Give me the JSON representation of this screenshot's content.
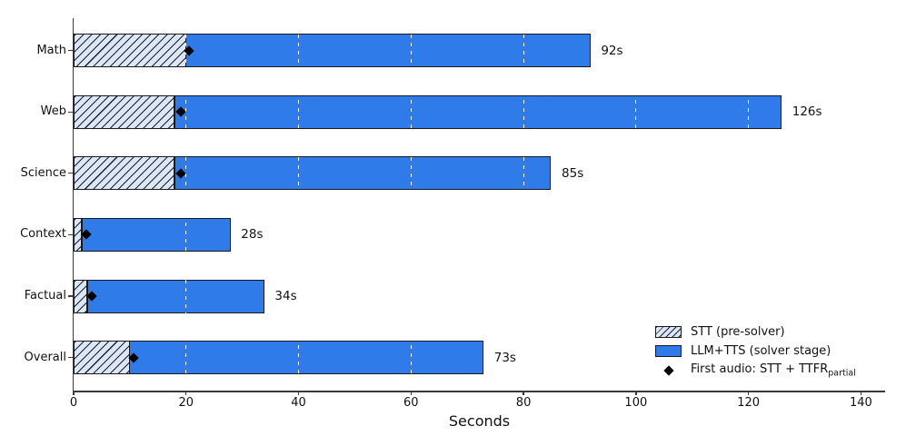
{
  "chart_data": {
    "type": "bar",
    "orientation": "horizontal",
    "title": "",
    "xlabel": "Seconds",
    "xlim": [
      0,
      144.3
    ],
    "xticks": [
      0,
      20,
      40,
      60,
      80,
      100,
      120,
      140
    ],
    "grid": "vertical-dashed",
    "categories": [
      "Math",
      "Web",
      "Science",
      "Context",
      "Factual",
      "Overall"
    ],
    "series": [
      {
        "name": "STT (pre-solver)",
        "style": "hatched",
        "values": [
          20,
          18,
          18,
          1.5,
          2.5,
          10
        ]
      },
      {
        "name": "LLM+TTS (solver stage)",
        "style": "solid",
        "values": [
          72,
          108,
          67,
          26.5,
          31.5,
          63
        ]
      }
    ],
    "totals": [
      92,
      126,
      85,
      28,
      34,
      73
    ],
    "total_labels": [
      "92s",
      "126s",
      "85s",
      "28s",
      "34s",
      "73s"
    ],
    "markers": {
      "name": "First audio: STT + TTFR_partial",
      "shape": "diamond",
      "values": [
        20.5,
        19,
        19,
        2.2,
        3.3,
        10.7
      ]
    },
    "legend": {
      "position": "lower-right",
      "frame": false,
      "items": [
        {
          "label": "STT (pre-solver)",
          "swatch": "hatched-patch"
        },
        {
          "label": "LLM+TTS (solver stage)",
          "swatch": "blue-patch"
        },
        {
          "label": "First audio: STT + TTFR",
          "subscript": "partial",
          "swatch": "black-diamond"
        }
      ]
    },
    "colors": {
      "solver_blue": "#2f7bea",
      "stt_fill": "#dbe7f8",
      "bar_edge": "#1a1a1a",
      "marker": "#000000",
      "spine": "#3a3a3a",
      "grid_under": "#e8e8e8",
      "grid_over": "#ffffff",
      "background": "#ffffff"
    }
  }
}
